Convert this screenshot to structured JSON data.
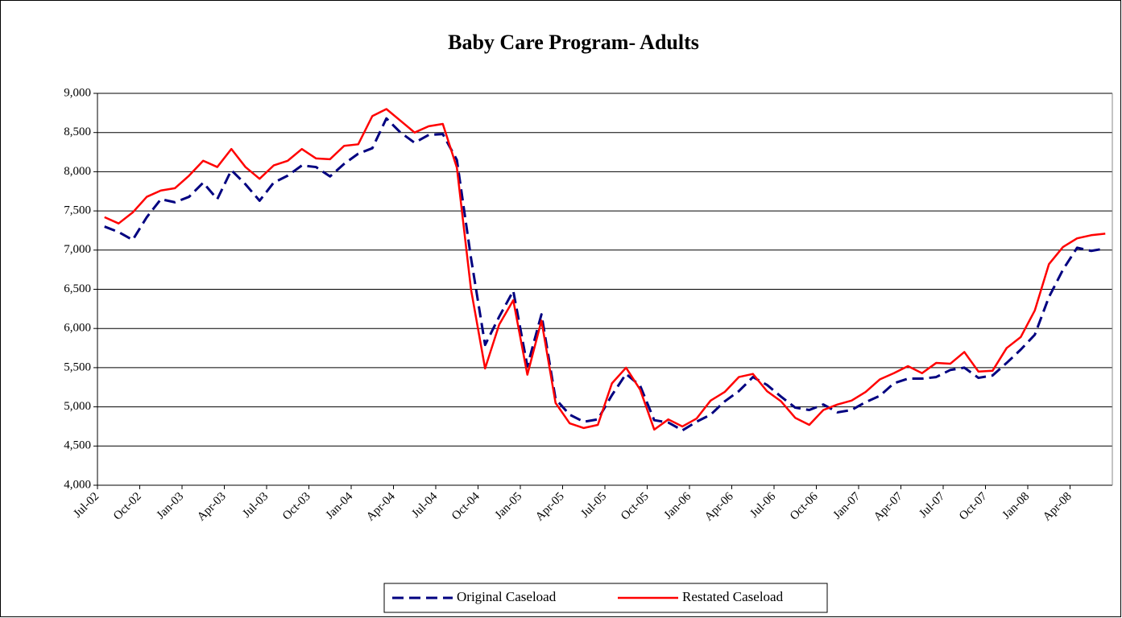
{
  "chart_data": {
    "type": "line",
    "title": "Baby Care Program- Adults",
    "categories": [
      "Jul-02",
      null,
      null,
      "Oct-02",
      null,
      null,
      "Jan-03",
      null,
      null,
      "Apr-03",
      null,
      null,
      "Jul-03",
      null,
      null,
      "Oct-03",
      null,
      null,
      "Jan-04",
      null,
      null,
      "Apr-04",
      null,
      null,
      "Jul-04",
      null,
      null,
      "Oct-04",
      null,
      null,
      "Jan-05",
      null,
      null,
      "Apr-05",
      null,
      null,
      "Jul-05",
      null,
      null,
      "Oct-05",
      null,
      null,
      "Jan-06",
      null,
      null,
      "Apr-06",
      null,
      null,
      "Jul-06",
      null,
      null,
      "Oct-06",
      null,
      null,
      "Jan-07",
      null,
      null,
      "Apr-07",
      null,
      null,
      "Jul-07",
      null,
      null,
      "Oct-07",
      null,
      null,
      "Jan-08",
      null,
      null,
      "Apr-08",
      null,
      null
    ],
    "series": [
      {
        "name": "Original Caseload",
        "color": "#000080",
        "dashed": true,
        "values": [
          7300,
          7230,
          7130,
          7420,
          7650,
          7610,
          7680,
          7860,
          7650,
          8020,
          7840,
          7630,
          7860,
          7950,
          8080,
          8060,
          7940,
          8100,
          8230,
          8300,
          8680,
          8500,
          8370,
          8470,
          8480,
          8150,
          6900,
          5790,
          6150,
          6480,
          5520,
          6180,
          5100,
          4900,
          4810,
          4840,
          5150,
          5420,
          5270,
          4830,
          4800,
          4700,
          4810,
          4900,
          5070,
          5200,
          5380,
          5280,
          5130,
          4990,
          4960,
          5030,
          4930,
          4960,
          5060,
          5140,
          5300,
          5360,
          5360,
          5380,
          5470,
          5500,
          5370,
          5400,
          5560,
          5730,
          5920,
          6400,
          6750,
          7030,
          6990,
          7020
        ]
      },
      {
        "name": "Restated Caseload",
        "color": "#ff0000",
        "dashed": false,
        "values": [
          7420,
          7340,
          7480,
          7680,
          7760,
          7790,
          7950,
          8140,
          8060,
          8290,
          8060,
          7910,
          8080,
          8140,
          8290,
          8170,
          8160,
          8330,
          8350,
          8710,
          8800,
          8650,
          8500,
          8580,
          8610,
          8050,
          6500,
          5490,
          6050,
          6360,
          5410,
          6100,
          5050,
          4790,
          4730,
          4770,
          5300,
          5500,
          5220,
          4710,
          4840,
          4750,
          4850,
          5080,
          5190,
          5380,
          5420,
          5200,
          5070,
          4860,
          4770,
          4960,
          5030,
          5080,
          5190,
          5350,
          5430,
          5520,
          5430,
          5560,
          5550,
          5700,
          5450,
          5460,
          5750,
          5890,
          6230,
          6820,
          7040,
          7150,
          7190,
          7210
        ]
      }
    ],
    "ylim": [
      4000,
      9000
    ],
    "yticks": [
      {
        "value": 4000,
        "label": "4,000"
      },
      {
        "value": 4500,
        "label": "4,500"
      },
      {
        "value": 5000,
        "label": "5,000"
      },
      {
        "value": 5500,
        "label": "5,500"
      },
      {
        "value": 6000,
        "label": "6,000"
      },
      {
        "value": 6500,
        "label": "6,500"
      },
      {
        "value": 7000,
        "label": "7,000"
      },
      {
        "value": 7500,
        "label": "7,500"
      },
      {
        "value": 8000,
        "label": "8,000"
      },
      {
        "value": 8500,
        "label": "8,500"
      },
      {
        "value": 9000,
        "label": "9,000"
      }
    ],
    "grid": true,
    "legend": "bottom"
  }
}
